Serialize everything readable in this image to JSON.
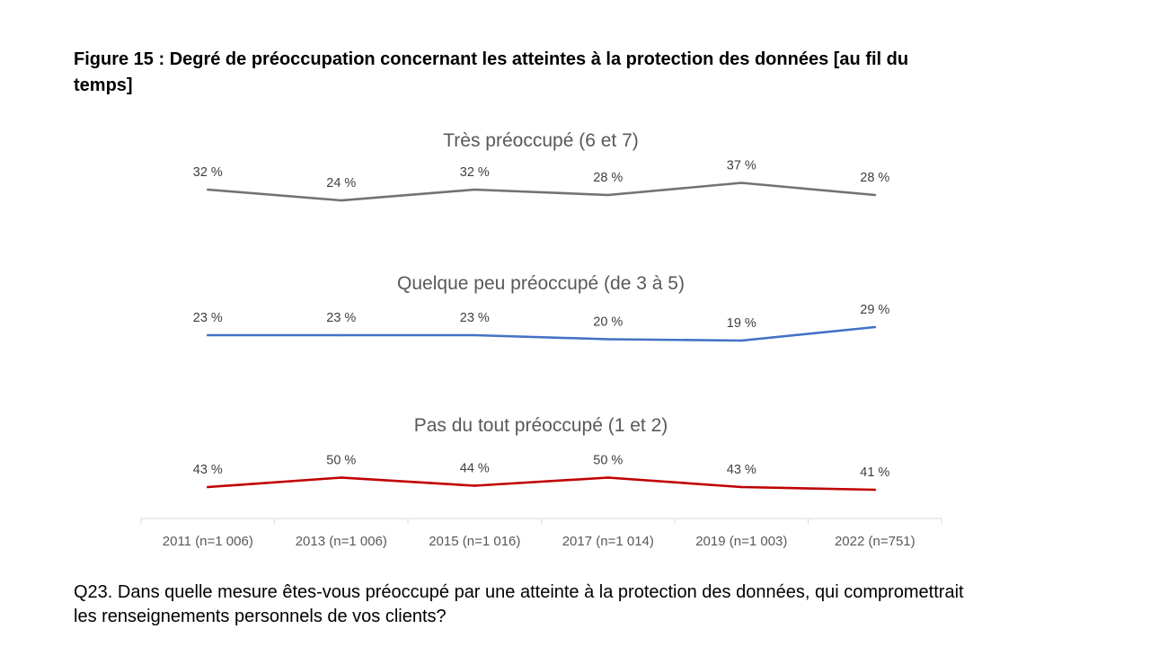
{
  "figure_title": "Figure 15 : Degré de préoccupation concernant les atteintes à la protection des données [au fil du temps]",
  "question": "Q23. Dans quelle mesure êtes-vous préoccupé par une atteinte à la protection des données, qui compromettrait les renseignements personnels de vos clients?",
  "chart_data": {
    "type": "line",
    "title": "Figure 15 : Degré de préoccupation concernant les atteintes à la protection des données [au fil du temps]",
    "xlabel": "",
    "ylabel": "",
    "categories": [
      "2011 (n=1 006)",
      "2013 (n=1 006)",
      "2015 (n=1 016)",
      "2017 (n=1 014)",
      "2019 (n=1 003)",
      "2022 (n=751)"
    ],
    "series": [
      {
        "name": "Très préoccupé (6 et 7)",
        "color": "#767171",
        "values": [
          32,
          24,
          32,
          28,
          37,
          28
        ],
        "labels": [
          "32 %",
          "24 %",
          "32 %",
          "28 %",
          "37 %",
          "28 %"
        ]
      },
      {
        "name": "Quelque peu préoccupé (de 3 à 5)",
        "color": "#4472c4",
        "values": [
          23,
          23,
          23,
          20,
          19,
          29
        ],
        "labels": [
          "23 %",
          "23 %",
          "23 %",
          "20 %",
          "19 %",
          "29 %"
        ]
      },
      {
        "name": "Pas du tout préoccupé (1 et 2)",
        "color": "#c00000",
        "values": [
          43,
          50,
          44,
          50,
          43,
          41
        ],
        "labels": [
          "43 %",
          "50 %",
          "44 %",
          "50 %",
          "43 %",
          "41 %"
        ]
      }
    ],
    "grid": false,
    "legend": "none"
  }
}
